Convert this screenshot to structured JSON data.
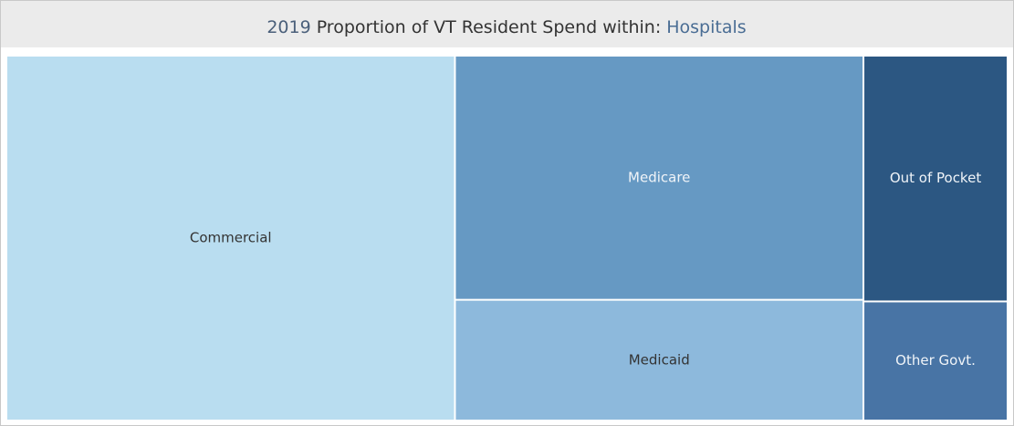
{
  "chart_data": {
    "type": "treemap",
    "year": "2019",
    "title": "Proportion of VT Resident Spend within:",
    "filter": "Hospitals",
    "categories": [
      "Commercial",
      "Medicare",
      "Medicaid",
      "Out of Pocket",
      "Other Govt."
    ],
    "values": [
      44.8,
      27.3,
      13.5,
      9.7,
      4.7
    ],
    "colors": [
      "#b9ddf0",
      "#6699c3",
      "#8db9dc",
      "#2c5782",
      "#4874a5"
    ]
  }
}
